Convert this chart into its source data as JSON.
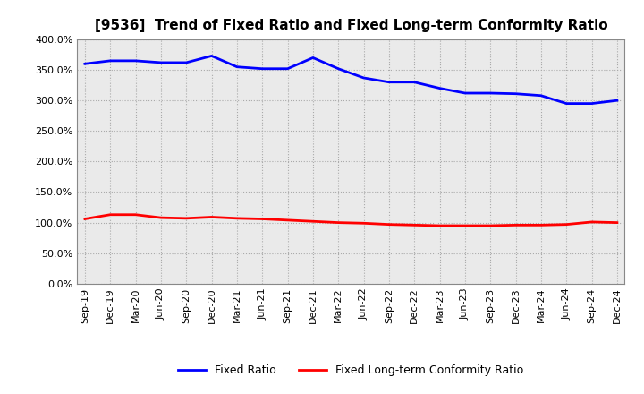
{
  "title": "[9536]  Trend of Fixed Ratio and Fixed Long-term Conformity Ratio",
  "x_labels": [
    "Sep-19",
    "Dec-19",
    "Mar-20",
    "Jun-20",
    "Sep-20",
    "Dec-20",
    "Mar-21",
    "Jun-21",
    "Sep-21",
    "Dec-21",
    "Mar-22",
    "Jun-22",
    "Sep-22",
    "Dec-22",
    "Mar-23",
    "Jun-23",
    "Sep-23",
    "Dec-23",
    "Mar-24",
    "Jun-24",
    "Sep-24",
    "Dec-24"
  ],
  "fixed_ratio": [
    360,
    365,
    365,
    362,
    362,
    373,
    355,
    352,
    352,
    370,
    352,
    337,
    330,
    330,
    320,
    312,
    312,
    311,
    308,
    295,
    295,
    300
  ],
  "fixed_longterm": [
    106,
    113,
    113,
    108,
    107,
    109,
    107,
    106,
    104,
    102,
    100,
    99,
    97,
    96,
    95,
    95,
    95,
    96,
    96,
    97,
    101,
    100
  ],
  "fixed_ratio_color": "#0000FF",
  "fixed_longterm_color": "#FF0000",
  "ylim_min": 0,
  "ylim_max": 400,
  "ytick_interval": 50,
  "background_color": "#FFFFFF",
  "plot_bg_color": "#EAEAEA",
  "grid_color": "#AAAAAA",
  "legend_fixed_ratio": "Fixed Ratio",
  "legend_fixed_longterm": "Fixed Long-term Conformity Ratio",
  "title_fontsize": 11,
  "tick_fontsize": 8,
  "legend_fontsize": 9,
  "line_width": 2.0
}
